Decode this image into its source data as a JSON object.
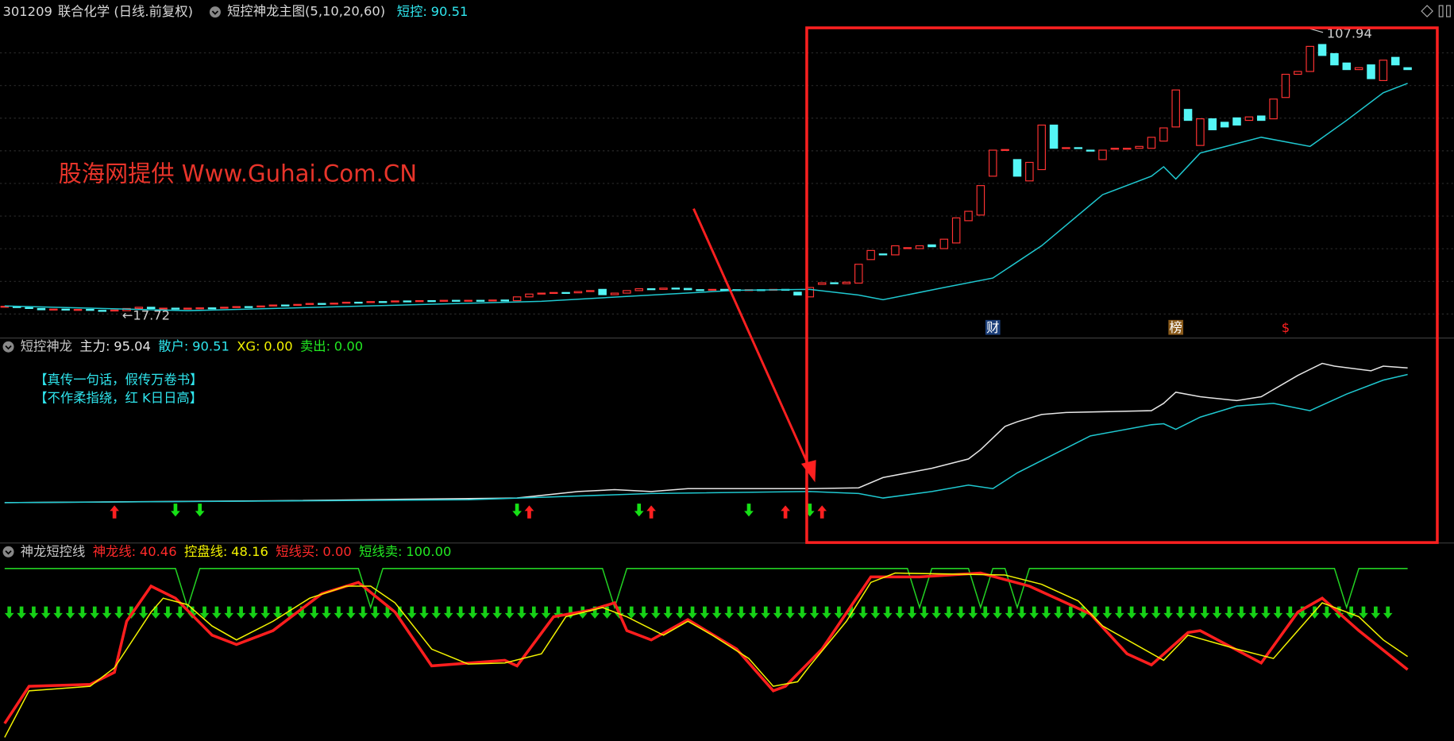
{
  "header": {
    "code": "301209",
    "name": "联合化学 (日线.前复权)",
    "indicator": "短控神龙主图(5,10,20,60)",
    "items": [
      {
        "label": "短控:",
        "value": 90.51,
        "color": "#2fe6ee"
      }
    ]
  },
  "main": {
    "watermark": "股海网提供 Www.Guhai.Com.CN",
    "candles": {
      "up_color": "#ff3232",
      "down_color": "#54f6f6",
      "open": [
        20.3,
        20.6,
        20.2,
        19.9,
        19.6,
        19.7,
        19.4,
        19.6,
        19.3,
        19.2,
        19.2,
        19.9,
        20.3,
        19.9,
        20.0,
        19.8,
        20.0,
        20.1,
        20.0,
        20.3,
        20.5,
        20.4,
        20.7,
        21.0,
        20.9,
        21.2,
        21.5,
        21.3,
        21.6,
        21.9,
        21.8,
        22.1,
        22.0,
        22.3,
        22.1,
        22.4,
        22.2,
        22.5,
        22.4,
        22.5,
        22.4,
        22.6,
        22.4,
        23.6,
        24.5,
        24.8,
        25.0,
        24.9,
        25.3,
        26.0,
        24.3,
        24.8,
        25.6,
        26.2,
        26.0,
        26.4,
        26.3,
        25.9,
        25.8,
        26.0,
        25.9,
        25.8,
        25.9,
        25.7,
        26.0,
        25.1,
        23.6,
        27.6,
        28.1,
        27.8,
        28.0,
        35.5,
        37.3,
        37.0,
        39.0,
        39.0,
        40.2,
        39.0,
        40.8,
        47.9,
        49.7,
        62.1,
        70.4,
        67.4,
        60.6,
        64.2,
        78.4,
        71.0,
        71.2,
        70.4,
        67.4,
        70.8,
        71.0,
        71.0,
        71.0,
        73.3,
        77.8,
        83.4,
        71.9,
        80.4,
        79.3,
        80.7,
        79.9,
        81.3,
        80.4,
        87.2,
        94.6,
        95.5,
        104.1,
        101.2,
        98.2,
        96.1,
        97.6,
        92.6,
        100.0,
        96.7
      ],
      "close": [
        20.6,
        20.2,
        20.0,
        19.5,
        19.7,
        19.4,
        19.6,
        19.3,
        19.2,
        19.4,
        19.9,
        20.3,
        19.9,
        20.0,
        19.8,
        20.0,
        20.1,
        20.0,
        20.3,
        20.5,
        20.4,
        20.7,
        21.0,
        20.9,
        21.2,
        21.5,
        21.3,
        21.6,
        21.9,
        21.8,
        22.1,
        22.0,
        22.3,
        22.1,
        22.4,
        22.2,
        22.5,
        22.4,
        22.5,
        22.4,
        22.6,
        22.3,
        23.6,
        24.5,
        24.8,
        25.0,
        24.9,
        25.3,
        25.6,
        24.3,
        24.8,
        25.6,
        26.2,
        26.0,
        26.4,
        26.3,
        25.9,
        25.8,
        26.0,
        25.9,
        25.8,
        25.9,
        25.7,
        26.0,
        25.8,
        24.2,
        26.6,
        28.1,
        27.8,
        28.3,
        34.0,
        38.4,
        37.0,
        39.9,
        39.3,
        39.9,
        39.6,
        42.0,
        48.8,
        50.9,
        59.1,
        70.4,
        70.6,
        62.1,
        66.5,
        78.4,
        71.0,
        71.2,
        71.0,
        70.1,
        70.4,
        71.0,
        71.0,
        71.6,
        74.5,
        77.5,
        89.6,
        79.9,
        80.4,
        76.9,
        77.8,
        78.4,
        81.0,
        79.9,
        86.7,
        94.6,
        95.5,
        103.5,
        100.6,
        97.6,
        96.1,
        96.7,
        93.2,
        99.1,
        97.6,
        96.1
      ]
    },
    "ma": {
      "color": "#1fc8d0",
      "x": [
        0,
        15,
        44,
        53,
        60,
        66,
        70,
        72,
        77,
        81,
        85,
        90,
        94,
        95,
        96,
        98,
        103,
        107,
        110,
        113,
        115
      ],
      "values": [
        20.7,
        19.2,
        22.2,
        24.2,
        25.7,
        26.0,
        24.2,
        22.7,
        26.6,
        29.6,
        39.9,
        56.2,
        62.1,
        65.1,
        61.2,
        69.5,
        74.5,
        71.6,
        79.9,
        88.7,
        91.7
      ]
    },
    "high_label": {
      "index": 107,
      "value": 107.94
    },
    "low_label": {
      "index": 10,
      "value": {
        "value": 17.72,
        "label": "←17.72"
      }
    },
    "markers": [
      {
        "index": 81,
        "label": "财"
      },
      {
        "index": 96,
        "label": "榜"
      },
      {
        "index": 105,
        "label": "$"
      }
    ]
  },
  "panel2": {
    "title": "短控神龙",
    "items": [
      {
        "label": "主力:",
        "value": 95.04,
        "color": "#e6e6e6"
      },
      {
        "label": "散户:",
        "value": 90.51,
        "color": "#2fe6ee"
      },
      {
        "label": "XG:",
        "value": {
          "value": 0,
          "label": "0.00"
        },
        "color": "#f2f200"
      },
      {
        "label": "卖出:",
        "value": {
          "value": 0,
          "label": "0.00"
        },
        "color": "#22e822"
      }
    ],
    "notes": [
      "【真传一句话，假传万卷书】",
      "【不作柔指绕，红 K日日高】"
    ],
    "ylim": [
      0,
      100
    ],
    "series": [
      {
        "color": "#e6e6e6",
        "x": [
          0,
          22,
          42,
          47,
          50,
          53,
          56,
          66,
          70,
          72,
          76,
          79,
          80,
          82,
          83,
          85,
          87,
          94,
          95,
          96,
          98,
          101,
          103,
          106,
          108,
          109,
          112,
          113,
          115
        ],
        "values": [
          1.9,
          3.2,
          5.1,
          9.6,
          10.9,
          9.6,
          11.6,
          11.6,
          12.2,
          19.3,
          25.7,
          32.1,
          38.5,
          54.6,
          57.8,
          62.9,
          64.2,
          65.5,
          70.6,
          78.3,
          75.1,
          72.5,
          75.1,
          89.9,
          98.2,
          96.3,
          93.1,
          96.3,
          95.04
        ]
      },
      {
        "color": "#1fc8d0",
        "x": [
          0,
          38,
          53,
          66,
          70,
          72,
          76,
          79,
          81,
          83,
          86,
          89,
          94,
          95,
          96,
          98,
          101,
          104,
          107,
          110,
          113,
          115
        ],
        "values": [
          1.9,
          3.9,
          8.3,
          9.6,
          8.3,
          5.1,
          9.6,
          14.1,
          11.6,
          22.5,
          35.3,
          48.1,
          55.8,
          56.5,
          52.6,
          61.0,
          68.7,
          70.6,
          65.5,
          77.0,
          86.6,
          90.51
        ]
      }
    ],
    "up_arrows": [
      9,
      43,
      53,
      64,
      67
    ],
    "down_arrows": [
      14,
      16,
      42,
      52,
      61,
      66
    ]
  },
  "panel3": {
    "title": "神龙短控线",
    "items": [
      {
        "label": "神龙线:",
        "value": 40.46,
        "color": "#ff2a2a"
      },
      {
        "label": "控盘线:",
        "value": 48.16,
        "color": "#f2f200"
      },
      {
        "label": "短线买:",
        "value": {
          "value": 0,
          "label": "0.00"
        },
        "color": "#ff2a2a"
      },
      {
        "label": "短线卖:",
        "value": {
          "value": 100,
          "label": "100.00"
        },
        "color": "#22e822"
      }
    ],
    "ylim": [
      0,
      100
    ],
    "series": [
      {
        "color": "#22d022",
        "width": 1.3,
        "x": [
          0,
          14,
          15,
          16,
          29,
          30,
          31,
          49,
          50,
          51,
          74,
          75,
          76,
          79,
          80,
          81,
          82,
          83,
          84,
          109,
          110,
          111,
          115
        ],
        "values": [
          100,
          100,
          77,
          100,
          100,
          77,
          100,
          100,
          77,
          100,
          100,
          77,
          100,
          100,
          77,
          100,
          100,
          77,
          100,
          100,
          77,
          100,
          100
        ]
      },
      {
        "color": "#ff1e1e",
        "width": 3,
        "x": [
          0,
          2,
          7,
          9,
          10,
          12,
          14,
          17,
          19,
          22,
          26,
          29,
          32,
          35,
          41,
          42,
          45,
          48,
          50,
          51,
          53,
          56,
          60,
          63,
          64,
          67,
          71,
          75,
          80,
          84,
          89,
          92,
          94,
          97,
          98,
          103,
          106,
          108,
          111,
          115
        ],
        "values": [
          8.7,
          30.6,
          31.7,
          38.8,
          68.9,
          89.6,
          82.5,
          60.7,
          55.2,
          63.4,
          85.2,
          91.8,
          74.3,
          42.6,
          45.9,
          42.6,
          71.6,
          75.4,
          79.8,
          63.4,
          57.9,
          69.9,
          52.5,
          27.9,
          30.6,
          52.5,
          95.1,
          95.1,
          97.3,
          89.6,
          73.2,
          49.7,
          43.2,
          62.3,
          63.4,
          44.3,
          74.3,
          82.5,
          63.4,
          40.46
        ]
      },
      {
        "color": "#f2f200",
        "width": 1.3,
        "x": [
          0,
          2,
          7,
          9,
          12,
          13,
          15,
          17,
          19,
          22,
          25,
          28,
          30,
          32,
          35,
          38,
          41,
          44,
          46,
          49,
          51,
          54,
          56,
          58,
          61,
          63,
          65,
          66,
          69,
          71,
          73,
          82,
          85,
          88,
          90,
          95,
          97,
          101,
          104,
          106,
          108,
          111,
          113,
          115
        ],
        "values": [
          0.5,
          27.9,
          30.6,
          41.5,
          74.3,
          82.5,
          78.7,
          66.1,
          57.9,
          68.9,
          82.5,
          89.6,
          89.6,
          79.8,
          52.5,
          43.7,
          44.3,
          49.7,
          71.6,
          77.0,
          71.6,
          60.7,
          68.9,
          60.7,
          47.0,
          30.6,
          33.3,
          42.6,
          68.9,
          91.8,
          97.3,
          96.2,
          90.7,
          80.9,
          66.1,
          45.9,
          60.7,
          52.5,
          47.0,
          63.4,
          79.8,
          71.6,
          57.9,
          48.16
        ]
      }
    ]
  }
}
